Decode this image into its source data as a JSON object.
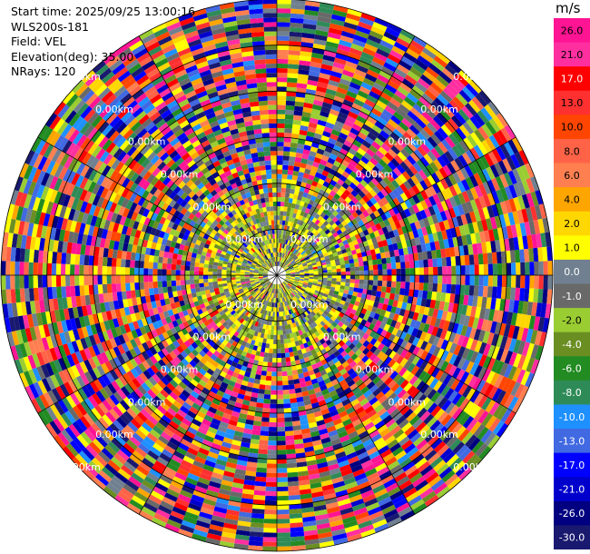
{
  "info": {
    "start_time": "Start time: 2025/09/25 13:00:16",
    "instrument": "WLS200s-181",
    "field": "Field: VEL",
    "elevation": "Elevation(deg): 35.00",
    "nrays": "NRays: 120"
  },
  "chart_data": {
    "type": "heatmap",
    "projection": "polar-ppi",
    "range_rings_km": [
      1,
      2,
      3,
      4,
      5,
      6
    ],
    "range_label_text": "0.00km",
    "rays": 120,
    "grid": true,
    "colorbar": {
      "unit": "m/s",
      "position": "right",
      "ticks": [
        "26.0",
        "21.0",
        "17.0",
        "13.0",
        "10.0",
        "8.0",
        "6.0",
        "4.0",
        "2.0",
        "1.0",
        "0.0",
        "-1.0",
        "-2.0",
        "-4.0",
        "-6.0",
        "-8.0",
        "-10.0",
        "-13.0",
        "-17.0",
        "-21.0",
        "-26.0",
        "-30.0"
      ],
      "colors": [
        "#ff1493",
        "#ff2fa0",
        "#ff0000",
        "#ff3030",
        "#ff4500",
        "#ff6347",
        "#ff7f50",
        "#ffa500",
        "#ffd700",
        "#ffff00",
        "#708090",
        "#696969",
        "#9acd32",
        "#6b8e23",
        "#228b22",
        "#2e8b57",
        "#1e90ff",
        "#4169e1",
        "#0000ff",
        "#0000cd",
        "#000080",
        "#191970"
      ]
    },
    "near_field_km": 1.5,
    "near_field_colors": [
      "#ffff00",
      "#708090",
      "#9acd32",
      "#696969",
      "#6b8e23",
      "#ffd700"
    ]
  }
}
